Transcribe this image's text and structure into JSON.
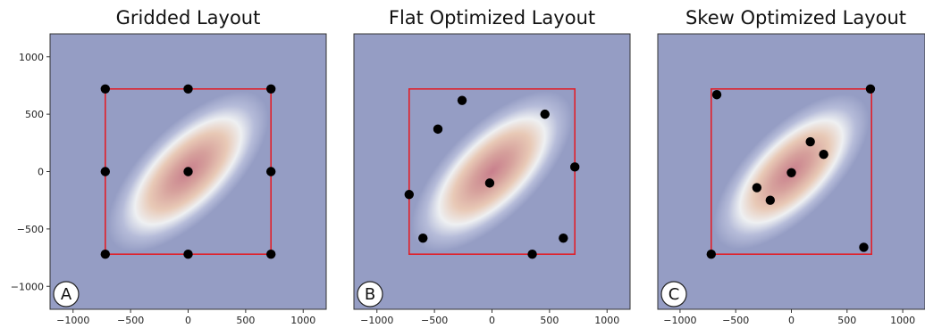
{
  "chart_data": [
    {
      "type": "scatter",
      "title": "Gridded Layout",
      "panel_label": "A",
      "xlim": [
        -1200,
        1200
      ],
      "ylim": [
        -1200,
        1200
      ],
      "xticks": [
        -1000,
        -500,
        0,
        500,
        1000
      ],
      "yticks": [
        1000,
        500,
        0,
        -500,
        -1000
      ],
      "xtick_labels": [
        "−1000",
        "−500",
        "0",
        "500",
        "1000"
      ],
      "ytick_labels": [
        "1000",
        "500",
        "0",
        "−500",
        "−1000"
      ],
      "boundary": {
        "x": [
          -720,
          720
        ],
        "y": [
          -720,
          720
        ],
        "color": "#e0202a"
      },
      "background_color": "#959dc4",
      "density": {
        "center": [
          0,
          0
        ],
        "angle_deg": 45,
        "major_sd": 430,
        "minor_sd": 190
      },
      "points": [
        {
          "x": -720,
          "y": 720
        },
        {
          "x": 0,
          "y": 720
        },
        {
          "x": 720,
          "y": 720
        },
        {
          "x": -720,
          "y": 0
        },
        {
          "x": 0,
          "y": 0
        },
        {
          "x": 720,
          "y": 0
        },
        {
          "x": -720,
          "y": -720
        },
        {
          "x": 0,
          "y": -720
        },
        {
          "x": 720,
          "y": -720
        }
      ]
    },
    {
      "type": "scatter",
      "title": "Flat Optimized Layout",
      "panel_label": "B",
      "xlim": [
        -1200,
        1200
      ],
      "ylim": [
        -1200,
        1200
      ],
      "xticks": [
        -1000,
        -500,
        0,
        500,
        1000
      ],
      "yticks": [],
      "xtick_labels": [
        "−1000",
        "−500",
        "0",
        "500",
        "1000"
      ],
      "ytick_labels": [],
      "boundary": {
        "x": [
          -720,
          720
        ],
        "y": [
          -720,
          720
        ],
        "color": "#e0202a"
      },
      "background_color": "#959dc4",
      "density": {
        "center": [
          0,
          0
        ],
        "angle_deg": 45,
        "major_sd": 430,
        "minor_sd": 190
      },
      "points": [
        {
          "x": -260,
          "y": 620
        },
        {
          "x": 460,
          "y": 500
        },
        {
          "x": -470,
          "y": 370
        },
        {
          "x": 720,
          "y": 40
        },
        {
          "x": -20,
          "y": -100
        },
        {
          "x": -720,
          "y": -200
        },
        {
          "x": -600,
          "y": -580
        },
        {
          "x": 620,
          "y": -580
        },
        {
          "x": 350,
          "y": -720
        }
      ]
    },
    {
      "type": "scatter",
      "title": "Skew Optimized Layout",
      "panel_label": "C",
      "xlim": [
        -1200,
        1200
      ],
      "ylim": [
        -1200,
        1200
      ],
      "xticks": [
        -1000,
        -500,
        0,
        500,
        1000
      ],
      "yticks": [],
      "xtick_labels": [
        "−1000",
        "−500",
        "0",
        "500",
        "1000"
      ],
      "ytick_labels": [],
      "boundary": {
        "x": [
          -720,
          720
        ],
        "y": [
          -720,
          720
        ],
        "color": "#e0202a"
      },
      "background_color": "#959dc4",
      "density": {
        "center": [
          0,
          0
        ],
        "angle_deg": 45,
        "major_sd": 430,
        "minor_sd": 190
      },
      "points": [
        {
          "x": -670,
          "y": 670
        },
        {
          "x": 710,
          "y": 720
        },
        {
          "x": 170,
          "y": 260
        },
        {
          "x": 290,
          "y": 150
        },
        {
          "x": 0,
          "y": -10
        },
        {
          "x": -310,
          "y": -140
        },
        {
          "x": -190,
          "y": -250
        },
        {
          "x": 650,
          "y": -660
        },
        {
          "x": -720,
          "y": -720
        }
      ]
    }
  ]
}
